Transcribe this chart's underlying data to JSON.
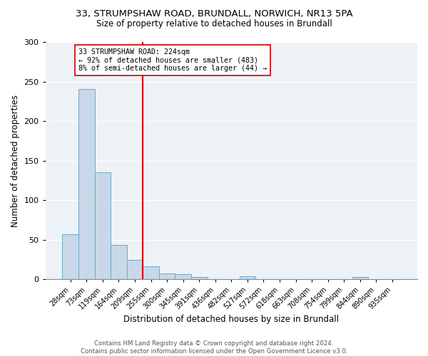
{
  "title": "33, STRUMPSHAW ROAD, BRUNDALL, NORWICH, NR13 5PA",
  "subtitle": "Size of property relative to detached houses in Brundall",
  "xlabel": "Distribution of detached houses by size in Brundall",
  "ylabel": "Number of detached properties",
  "bar_labels": [
    "28sqm",
    "73sqm",
    "119sqm",
    "164sqm",
    "209sqm",
    "255sqm",
    "300sqm",
    "345sqm",
    "391sqm",
    "436sqm",
    "482sqm",
    "527sqm",
    "572sqm",
    "618sqm",
    "663sqm",
    "708sqm",
    "754sqm",
    "799sqm",
    "844sqm",
    "890sqm",
    "935sqm"
  ],
  "bar_values": [
    57,
    241,
    135,
    44,
    25,
    17,
    8,
    7,
    3,
    0,
    0,
    4,
    0,
    0,
    0,
    0,
    0,
    0,
    3,
    0,
    0
  ],
  "bar_color": "#c8d8e8",
  "bar_edge_color": "#6aaacb",
  "vline_color": "#cc0000",
  "vline_x_index": 4.5,
  "annotation_text": "33 STRUMPSHAW ROAD: 224sqm\n← 92% of detached houses are smaller (483)\n8% of semi-detached houses are larger (44) →",
  "annotation_box_color": "white",
  "annotation_box_edge_color": "#cc0000",
  "ylim": [
    0,
    300
  ],
  "yticks": [
    0,
    50,
    100,
    150,
    200,
    250,
    300
  ],
  "bg_color": "#edf2f7",
  "footer": "Contains HM Land Registry data © Crown copyright and database right 2024.\nContains public sector information licensed under the Open Government Licence v3.0."
}
